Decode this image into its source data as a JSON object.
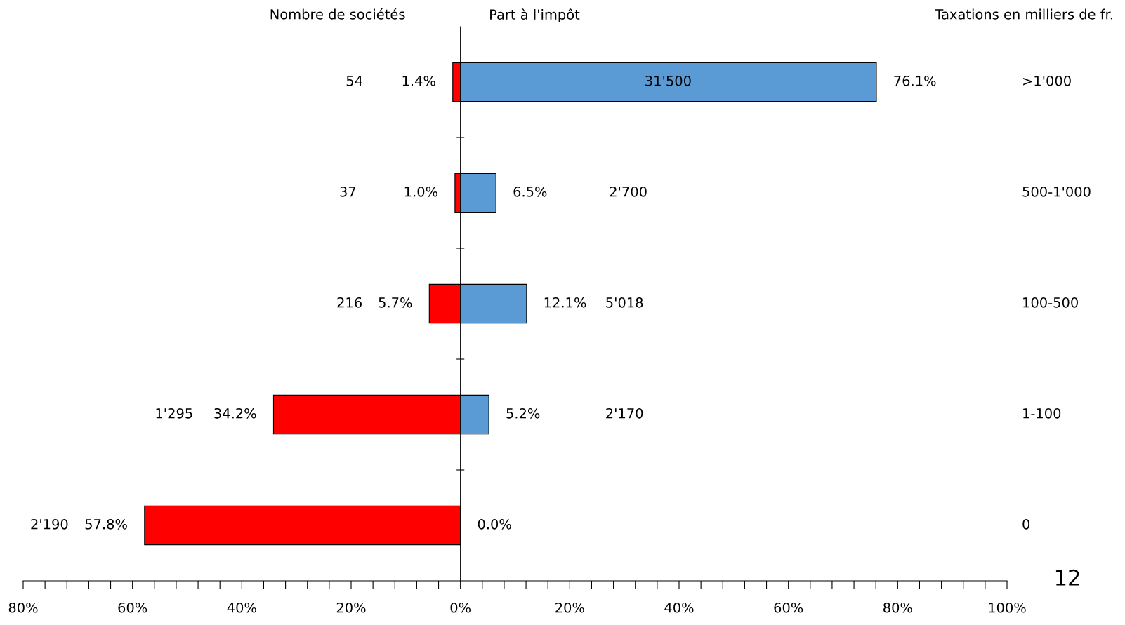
{
  "chart_data": {
    "type": "bar",
    "orientation": "horizontal",
    "stacked": true,
    "categories": [
      ">1'000",
      "500-1'000",
      "100-500",
      "1-100",
      "0"
    ],
    "series": [
      {
        "color": "#ff0000",
        "values": [
          -1.4,
          -1.0,
          -5.7,
          -34.2,
          -57.8
        ]
      },
      {
        "color": "#5b9bd5",
        "values": [
          76.1,
          6.5,
          12.1,
          5.2,
          0.0
        ]
      }
    ],
    "xlim": [
      -80,
      100
    ],
    "xticks": [
      {
        "value": -80,
        "label": "80%"
      },
      {
        "value": -76,
        "label": null
      },
      {
        "value": -72,
        "label": null
      },
      {
        "value": -68,
        "label": null
      },
      {
        "value": -64,
        "label": null
      },
      {
        "value": -60,
        "label": "60%"
      },
      {
        "value": -56,
        "label": null
      },
      {
        "value": -52,
        "label": null
      },
      {
        "value": -48,
        "label": null
      },
      {
        "value": -44,
        "label": null
      },
      {
        "value": -40,
        "label": "40%"
      },
      {
        "value": -36,
        "label": null
      },
      {
        "value": -32,
        "label": null
      },
      {
        "value": -28,
        "label": null
      },
      {
        "value": -24,
        "label": null
      },
      {
        "value": -20,
        "label": "20%"
      },
      {
        "value": -16,
        "label": null
      },
      {
        "value": -12,
        "label": null
      },
      {
        "value": -8,
        "label": null
      },
      {
        "value": -4,
        "label": null
      },
      {
        "value": 0,
        "label": "0%"
      },
      {
        "value": 4,
        "label": null
      },
      {
        "value": 8,
        "label": null
      },
      {
        "value": 12,
        "label": null
      },
      {
        "value": 16,
        "label": null
      },
      {
        "value": 20,
        "label": "20%"
      },
      {
        "value": 24,
        "label": null
      },
      {
        "value": 28,
        "label": null
      },
      {
        "value": 32,
        "label": null
      },
      {
        "value": 36,
        "label": null
      },
      {
        "value": 40,
        "label": "40%"
      },
      {
        "value": 44,
        "label": null
      },
      {
        "value": 48,
        "label": null
      },
      {
        "value": 52,
        "label": null
      },
      {
        "value": 56,
        "label": null
      },
      {
        "value": 60,
        "label": "60%"
      },
      {
        "value": 64,
        "label": null
      },
      {
        "value": 68,
        "label": null
      },
      {
        "value": 72,
        "label": null
      },
      {
        "value": 76,
        "label": null
      },
      {
        "value": 80,
        "label": "80%"
      },
      {
        "value": 84,
        "label": null
      },
      {
        "value": 88,
        "label": null
      },
      {
        "value": 92,
        "label": null
      },
      {
        "value": 96,
        "label": null
      },
      {
        "value": 100,
        "label": "100%"
      }
    ],
    "legend": false,
    "annotations": [
      "Nombre de sociétés",
      "Part à l'impôt",
      "Taxations en milliers de fr.",
      "12",
      "54",
      "37",
      "216",
      "1'295",
      "2'190",
      "31'500",
      "2'700",
      "5'018",
      "2'170",
      "1.4%",
      "1.0%",
      "5.7%",
      "34.2%",
      "57.8%",
      "76.1%",
      "6.5%",
      "12.1%",
      "5.2%",
      "0.0%"
    ]
  }
}
